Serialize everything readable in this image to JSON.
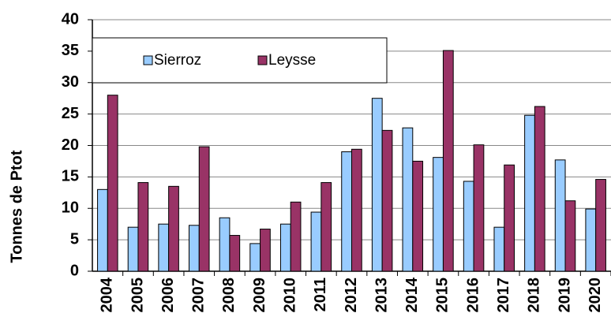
{
  "chart_data": {
    "type": "bar",
    "y_label": "Tonnes de Ptot",
    "categories": [
      "2004",
      "2005",
      "2006",
      "2007",
      "2008",
      "2009",
      "2010",
      "2011",
      "2012",
      "2013",
      "2014",
      "2015",
      "2016",
      "2017",
      "2018",
      "2019",
      "2020"
    ],
    "series": [
      {
        "name": "Sierroz",
        "color": "#99ccff",
        "values": [
          13,
          7,
          7.5,
          7.3,
          8.5,
          4.4,
          7.5,
          9.4,
          19,
          27.5,
          22.8,
          18.1,
          14.3,
          7,
          24.8,
          17.7,
          9.9
        ]
      },
      {
        "name": "Leysse",
        "color": "#993366",
        "values": [
          28,
          14.1,
          13.5,
          19.8,
          5.7,
          6.7,
          11,
          14.1,
          19.4,
          22.4,
          17.5,
          35.1,
          20.1,
          16.9,
          26.2,
          11.2,
          14.6
        ]
      }
    ],
    "ylim": [
      0,
      40
    ],
    "yticks": [
      0,
      5,
      10,
      15,
      20,
      25,
      30,
      35,
      40
    ],
    "grid": true,
    "legend": "upper left"
  }
}
